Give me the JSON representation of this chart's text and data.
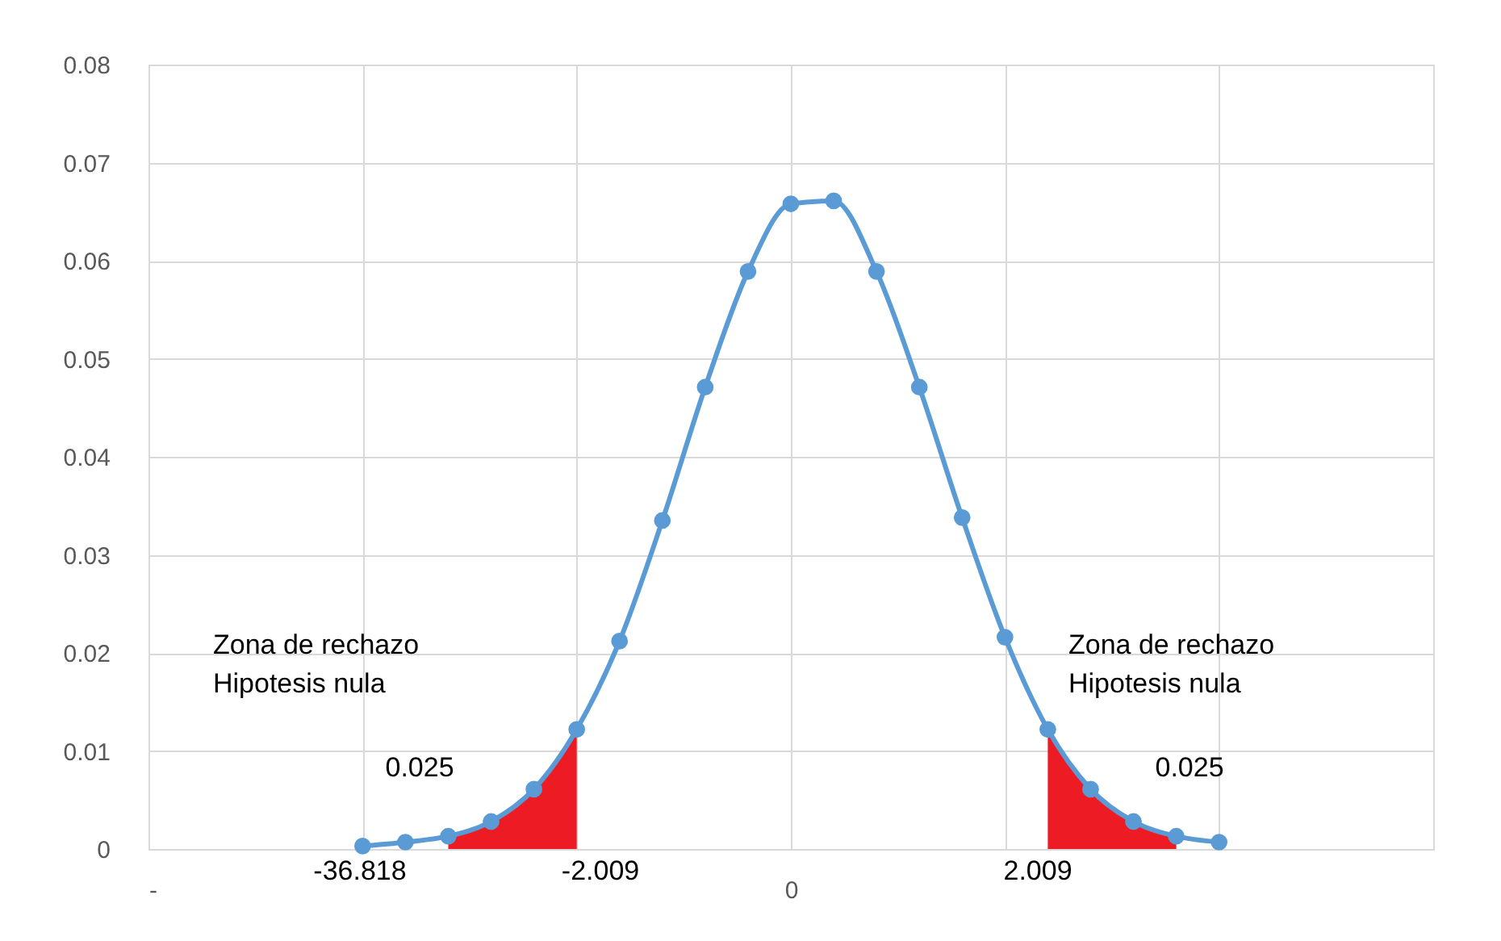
{
  "chart_data": {
    "type": "line",
    "categories": [
      "-",
      null,
      null,
      null,
      null,
      null,
      null,
      null,
      null,
      null,
      null,
      null,
      null,
      null,
      null,
      "0",
      null,
      null,
      null,
      null,
      null,
      null,
      null,
      null,
      null,
      null,
      null,
      null,
      null,
      null,
      null
    ],
    "series": [
      {
        "type": "area",
        "color": "#ed1c24",
        "values": [
          null,
          null,
          null,
          null,
          null,
          null,
          null,
          0.0013,
          0.0028,
          0.0061,
          0.0122,
          null,
          null,
          null,
          null,
          null,
          null,
          null,
          null,
          null,
          null,
          null,
          null,
          null,
          null,
          null,
          null,
          null,
          null,
          null,
          null
        ]
      },
      {
        "type": "area",
        "color": "#ed1c24",
        "values": [
          null,
          null,
          null,
          null,
          null,
          null,
          null,
          null,
          null,
          null,
          null,
          null,
          null,
          null,
          null,
          null,
          null,
          null,
          null,
          null,
          null,
          0.0122,
          0.0061,
          0.0028,
          0.0013,
          null,
          null,
          null,
          null,
          null,
          null
        ]
      },
      {
        "color": "#5b9bd5",
        "marker": "circle",
        "values": [
          null,
          null,
          null,
          null,
          null,
          0.0003,
          0.0007,
          0.0013,
          0.0028,
          0.0061,
          0.0122,
          0.0212,
          0.0335,
          0.0471,
          0.0589,
          0.0658,
          0.0661,
          0.0589,
          0.0471,
          0.0338,
          0.0216,
          0.0122,
          0.0061,
          0.0028,
          0.0013,
          0.0007,
          null,
          null,
          null,
          null,
          null
        ]
      }
    ],
    "ylim": [
      0,
      0.08
    ],
    "yticks": [
      0,
      0.01,
      0.02,
      0.03,
      0.04,
      0.05,
      0.06,
      0.07,
      0.08
    ],
    "grid": true,
    "annotations": [
      "Zona de rechazo\nHipotesis nula",
      "Zona de rechazo\nHipotesis nula",
      "0.025",
      "0.025",
      "-36.818",
      "-2.009",
      "2.009"
    ]
  }
}
